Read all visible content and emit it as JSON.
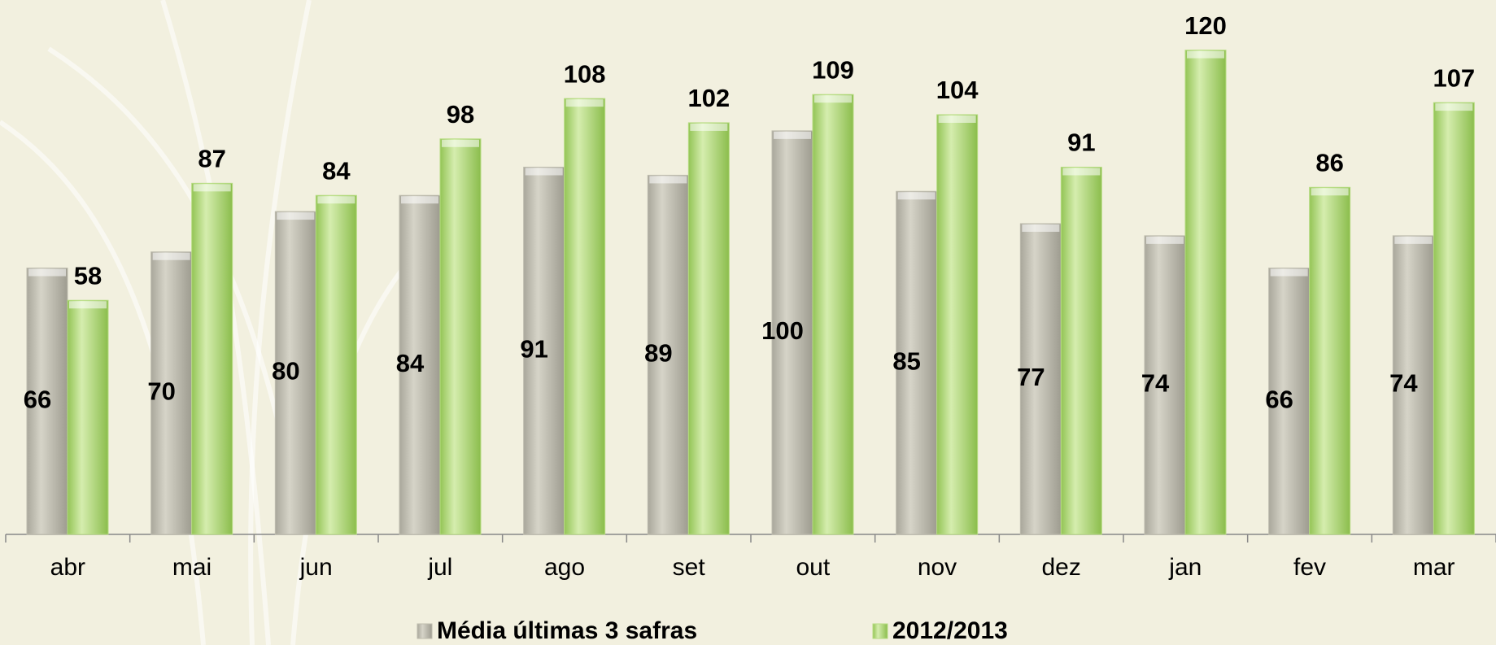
{
  "chart_data": {
    "type": "bar",
    "categories": [
      "abr",
      "mai",
      "jun",
      "jul",
      "ago",
      "set",
      "out",
      "nov",
      "dez",
      "jan",
      "fev",
      "mar"
    ],
    "series": [
      {
        "name": "Média últimas 3 safras",
        "color": "#bebcae",
        "values": [
          66,
          70,
          80,
          84,
          91,
          89,
          100,
          85,
          77,
          74,
          66,
          74
        ]
      },
      {
        "name": "2012/2013",
        "color": "#b6dc82",
        "values": [
          58,
          87,
          84,
          98,
          108,
          102,
          109,
          104,
          91,
          120,
          86,
          107
        ]
      }
    ],
    "ylim": [
      0,
      130
    ]
  }
}
